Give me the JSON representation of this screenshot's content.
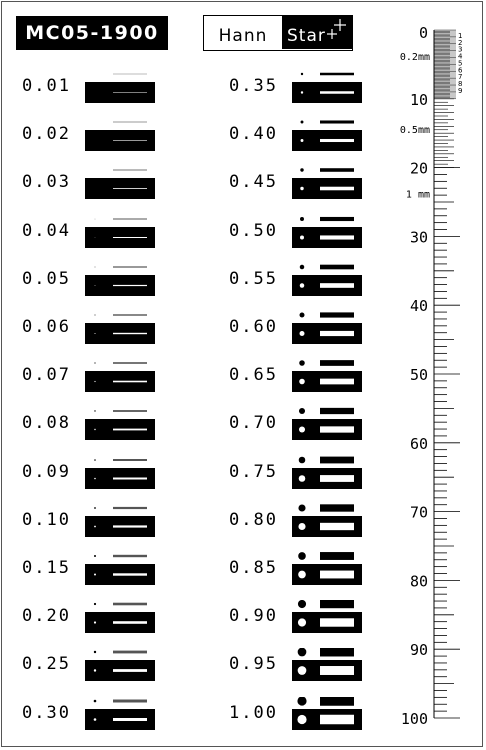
{
  "model": "MC05-1900",
  "logo": {
    "left": "Hann",
    "right": "Star"
  },
  "left_column": [
    "0.01",
    "0.02",
    "0.03",
    "0.04",
    "0.05",
    "0.06",
    "0.07",
    "0.08",
    "0.09",
    "0.10",
    "0.15",
    "0.20",
    "0.25",
    "0.30"
  ],
  "right_column": [
    "0.35",
    "0.40",
    "0.45",
    "0.50",
    "0.55",
    "0.60",
    "0.65",
    "0.70",
    "0.75",
    "0.80",
    "0.85",
    "0.90",
    "0.95",
    "1.00"
  ],
  "ruler": {
    "major_labels": [
      "0",
      "10",
      "20",
      "30",
      "40",
      "50",
      "60",
      "70",
      "80",
      "90",
      "100"
    ],
    "section_labels": [
      "0.2mm",
      "0.5mm",
      "1 mm"
    ],
    "fine_digits": [
      "1",
      "2",
      "3",
      "4",
      "5",
      "6",
      "7",
      "8",
      "9"
    ]
  }
}
